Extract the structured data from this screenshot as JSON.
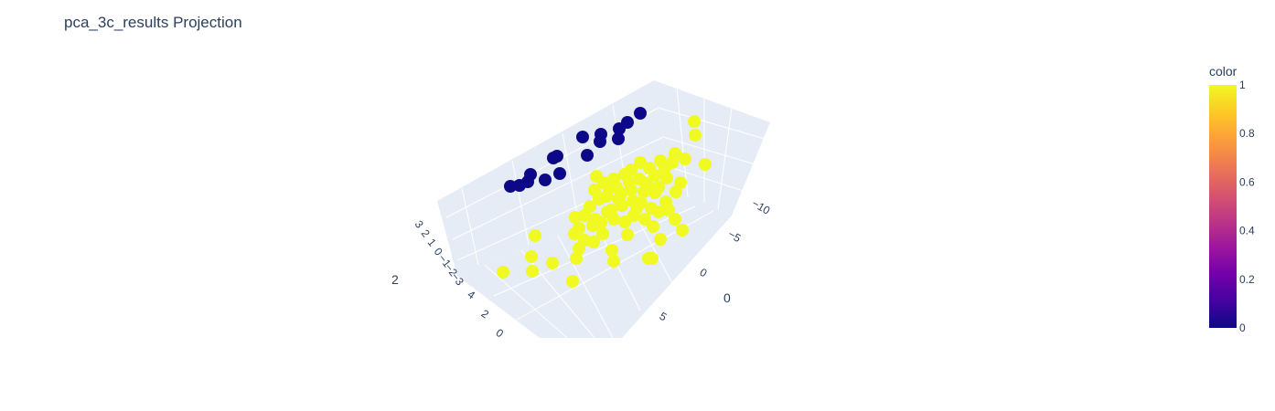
{
  "chart_data": {
    "type": "scatter",
    "title": "pca_3c_results Projection",
    "axes": {
      "left_ticks": [
        "3",
        "2",
        "1",
        "0",
        "−1",
        "−2",
        "−3"
      ],
      "left_title": "2",
      "bottom_left_ticks": [
        "4",
        "2",
        "0"
      ],
      "right_ticks": [
        "−10",
        "−5",
        "0",
        "5"
      ],
      "right_title": "0",
      "grid": true
    },
    "colorbar": {
      "title": "color",
      "ticks": [
        "1",
        "0.8",
        "0.6",
        "0.4",
        "0.2",
        "0"
      ],
      "range": [
        0,
        1
      ]
    },
    "series": [
      {
        "color_value": 0,
        "color": "#0d0887",
        "points": [
          [
            700,
            124
          ],
          [
            686,
            134
          ],
          [
            677,
            141
          ],
          [
            657,
            147
          ],
          [
            656,
            155
          ],
          [
            676,
            152
          ],
          [
            637,
            150
          ],
          [
            642,
            170
          ],
          [
            605,
            173
          ],
          [
            609,
            171
          ],
          [
            612,
            190
          ],
          [
            580,
            191
          ],
          [
            577,
            199
          ],
          [
            596,
            197
          ],
          [
            568,
            203
          ],
          [
            558,
            204
          ]
        ]
      },
      {
        "color_value": 1,
        "color": "#f0f921",
        "points": [
          [
            759,
            133
          ],
          [
            760,
            148
          ],
          [
            771,
            180
          ],
          [
            738,
            168
          ],
          [
            749,
            174
          ],
          [
            735,
            178
          ],
          [
            727,
            184
          ],
          [
            744,
            200
          ],
          [
            739,
            210
          ],
          [
            710,
            184
          ],
          [
            700,
            178
          ],
          [
            690,
            186
          ],
          [
            699,
            196
          ],
          [
            707,
            201
          ],
          [
            683,
            191
          ],
          [
            671,
            196
          ],
          [
            660,
            200
          ],
          [
            652,
            193
          ],
          [
            650,
            208
          ],
          [
            663,
            215
          ],
          [
            674,
            205
          ],
          [
            690,
            208
          ],
          [
            701,
            222
          ],
          [
            712,
            228
          ],
          [
            720,
            232
          ],
          [
            731,
            230
          ],
          [
            738,
            240
          ],
          [
            746,
            252
          ],
          [
            722,
            262
          ],
          [
            714,
            248
          ],
          [
            705,
            240
          ],
          [
            693,
            236
          ],
          [
            683,
            243
          ],
          [
            671,
            240
          ],
          [
            664,
            232
          ],
          [
            651,
            240
          ],
          [
            639,
            236
          ],
          [
            629,
            238
          ],
          [
            633,
            250
          ],
          [
            648,
            247
          ],
          [
            659,
            256
          ],
          [
            649,
            265
          ],
          [
            639,
            263
          ],
          [
            628,
            256
          ],
          [
            633,
            272
          ],
          [
            630,
            283
          ],
          [
            669,
            274
          ],
          [
            686,
            257
          ],
          [
            671,
            286
          ],
          [
            604,
            288
          ],
          [
            585,
            258
          ],
          [
            581,
            281
          ],
          [
            582,
            297
          ],
          [
            550,
            298
          ],
          [
            626,
            308
          ],
          [
            709,
            283
          ],
          [
            713,
            283
          ],
          [
            716,
            211
          ],
          [
            728,
            221
          ],
          [
            692,
            220
          ],
          [
            680,
            225
          ],
          [
            668,
            230
          ],
          [
            655,
            218
          ],
          [
            645,
            226
          ],
          [
            657,
            244
          ],
          [
            676,
            218
          ],
          [
            720,
            205
          ],
          [
            729,
            195
          ],
          [
            722,
            176
          ],
          [
            716,
            192
          ],
          [
            704,
            210
          ],
          [
            696,
            228
          ],
          [
            688,
            200
          ],
          [
            679,
            212
          ],
          [
            666,
            206
          ]
        ]
      }
    ]
  }
}
